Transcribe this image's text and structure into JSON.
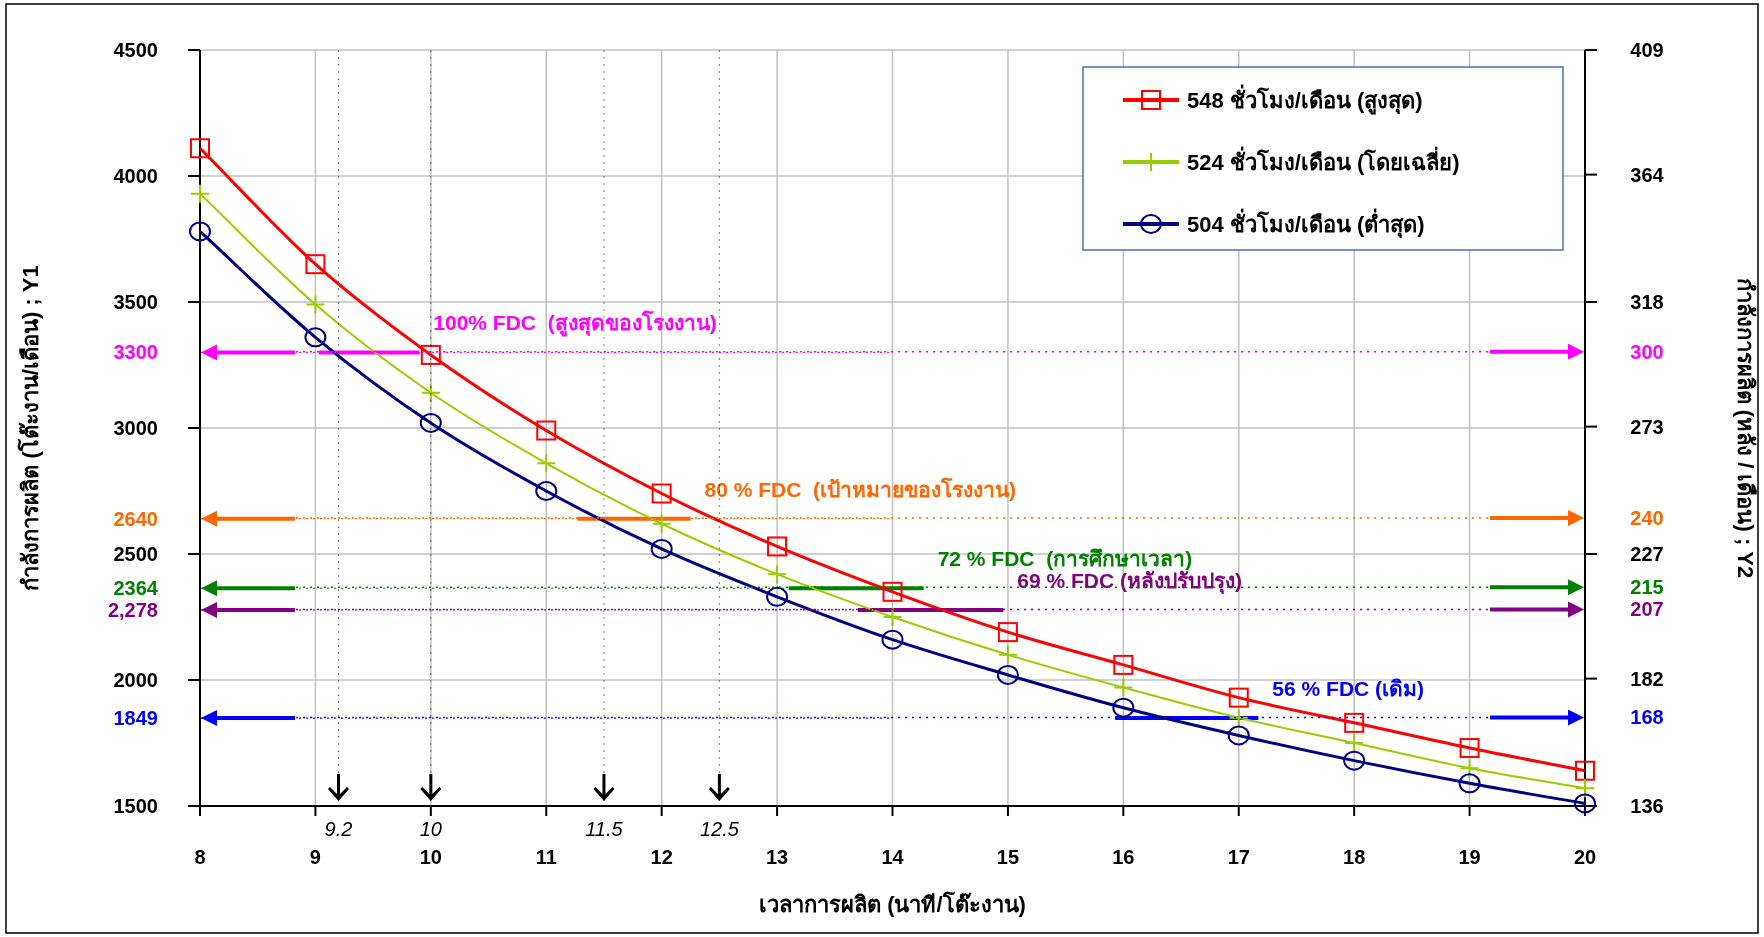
{
  "chart_data": {
    "type": "line",
    "xlabel": "เวลาการผลิต (นาที/โต๊ะงาน)",
    "ylabel": "กำลังการผลิต (โต๊ะงาน/เดือน) ; Y1",
    "y2label": "กำลังการผลิต (หลัง / เดือน) ; Y2",
    "x": [
      8,
      9,
      10,
      11,
      12,
      13,
      14,
      15,
      16,
      17,
      18,
      19,
      20
    ],
    "xlim": [
      8,
      20
    ],
    "xticks": [
      8,
      9,
      10,
      11,
      12,
      13,
      14,
      15,
      16,
      17,
      18,
      19,
      20
    ],
    "ylim": [
      1500,
      4500
    ],
    "yticks": [
      1500,
      2000,
      2500,
      3000,
      3500,
      4000,
      4500
    ],
    "y2lim": [
      136,
      409
    ],
    "y2ticks": [
      136,
      182,
      227,
      273,
      318,
      364,
      409
    ],
    "grid": true,
    "legend": "top right",
    "series": [
      {
        "name": "548 ชั่วโมง/เดือน (สูงสุด)",
        "color": "#ff0000",
        "marker": "square",
        "values": [
          4110,
          3650,
          3290,
          2990,
          2740,
          2530,
          2350,
          2190,
          2060,
          1930,
          1830,
          1730,
          1640
        ]
      },
      {
        "name": "524 ชั่วโมง/เดือน (โดยเฉลี่ย)",
        "color": "#99cc00",
        "marker": "cross",
        "values": [
          3930,
          3490,
          3140,
          2860,
          2620,
          2420,
          2250,
          2100,
          1970,
          1850,
          1750,
          1650,
          1570
        ]
      },
      {
        "name": "504 ชั่วโมง/เดือน (ต่ำสุด)",
        "color": "#000080",
        "marker": "circle",
        "values": [
          3780,
          3360,
          3020,
          2750,
          2520,
          2330,
          2160,
          2020,
          1890,
          1780,
          1680,
          1590,
          1510
        ]
      },
      {
        "color": "#ff00ff",
        "x": [
          9.03,
          9.9
        ],
        "values": [
          3300,
          3300
        ]
      },
      {
        "color": "#ff6600",
        "x": [
          11.27,
          12.25
        ],
        "values": [
          2640,
          2640
        ]
      },
      {
        "color": "#008000",
        "x": [
          13.1,
          14.27
        ],
        "values": [
          2364,
          2364
        ]
      },
      {
        "color": "#800080",
        "x": [
          13.7,
          14.96
        ],
        "values": [
          2278,
          2278
        ]
      },
      {
        "color": "#0000ff",
        "x": [
          15.93,
          17.17
        ],
        "values": [
          1849,
          1849
        ]
      }
    ],
    "annotations": [
      {
        "text": "100% FDC  (สูงสุดของโรงงาน)",
        "x": 9.9,
        "y": 3300
      },
      {
        "text": "80 % FDC  (เป้าหมายของโรงงาน)",
        "x": 12.25,
        "y": 2640
      },
      {
        "text": "72 % FDC  (การศึกษาเวลา)",
        "x": 14.27,
        "y": 2364
      },
      {
        "text": "69 % FDC (หลังปรับปรุง)",
        "x": 14.96,
        "y": 2278
      },
      {
        "text": "56 % FDC (เดิม)",
        "x": 17.17,
        "y": 1849
      }
    ],
    "ref_lines": [
      {
        "axis": "y",
        "value": 3300,
        "label": "3300",
        "color": "#ff00ff"
      },
      {
        "axis": "y",
        "value": 2640,
        "label": "2640",
        "color": "#ff6600"
      },
      {
        "axis": "y",
        "value": 2364,
        "label": "2364",
        "color": "#008000"
      },
      {
        "axis": "y",
        "value": 2278,
        "label": "2,278",
        "color": "#800080"
      },
      {
        "axis": "y",
        "value": 1849,
        "label": "1849",
        "color": "#0000ff"
      },
      {
        "axis": "y2",
        "value": 300,
        "label": "300",
        "color": "#ff00ff"
      },
      {
        "axis": "y2",
        "value": 240,
        "label": "240",
        "color": "#ff6600"
      },
      {
        "axis": "y2",
        "value": 215,
        "label": "215",
        "color": "#008000"
      },
      {
        "axis": "y2",
        "value": 207,
        "label": "207",
        "color": "#800080"
      },
      {
        "axis": "y2",
        "value": 168,
        "label": "168",
        "color": "#0000ff"
      },
      {
        "axis": "x",
        "value": 9.2,
        "label": "9.2",
        "color": "#000000"
      },
      {
        "axis": "x",
        "value": 10,
        "label": "10",
        "color": "#000000"
      },
      {
        "axis": "x",
        "value": 11.5,
        "label": "11.5",
        "color": "#000000"
      },
      {
        "axis": "x",
        "value": 12.5,
        "label": "12.5",
        "color": "#000000"
      }
    ]
  }
}
